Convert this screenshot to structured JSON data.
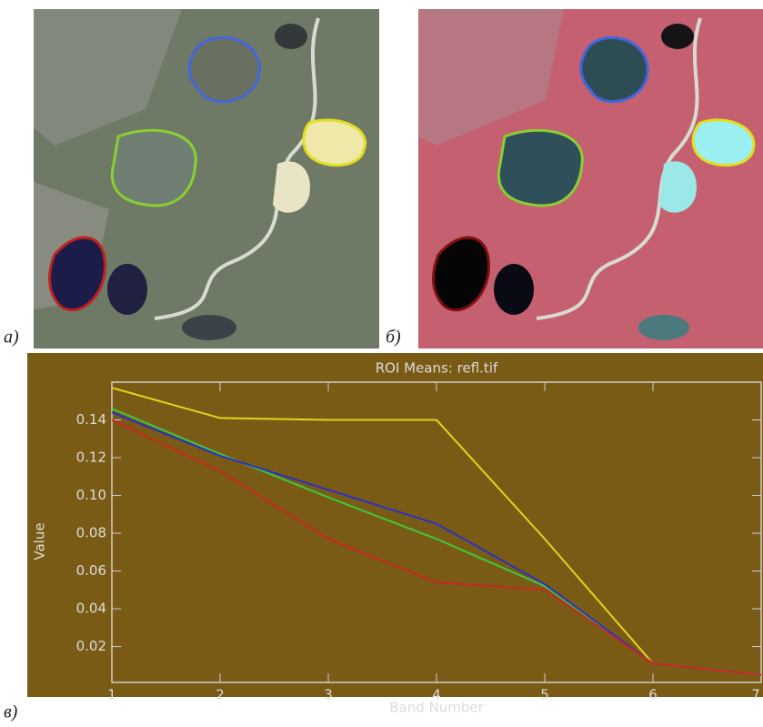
{
  "panels": [
    "а)",
    "б)",
    "в)"
  ],
  "chart_data": {
    "type": "line",
    "title": "ROI Means: refl.tif",
    "x_label": "Band Number",
    "y_label": "Value",
    "x": [
      1,
      2,
      3,
      4,
      5,
      6,
      7
    ],
    "xlim": [
      1,
      7
    ],
    "xticks": [
      1,
      2,
      3,
      4,
      5,
      6,
      7
    ],
    "ylim": [
      0.001,
      0.16
    ],
    "yticks": [
      0.02,
      0.04,
      0.06,
      0.08,
      {
        "value": 0.1,
        "label": "0.10"
      },
      0.12,
      0.14
    ],
    "series": [
      {
        "color": "#e6d21e",
        "values": [
          0.157,
          0.141,
          0.14,
          0.14,
          0.077,
          0.011,
          0.005
        ]
      },
      {
        "color": "#3ec83a",
        "values": [
          0.146,
          0.122,
          0.099,
          0.077,
          0.052,
          0.011,
          0.005
        ]
      },
      {
        "color": "#2b2fc8",
        "values": [
          0.144,
          0.121,
          0.103,
          0.085,
          0.053,
          0.011,
          0.005
        ]
      },
      {
        "color": "#c8281e",
        "values": [
          0.14,
          0.113,
          0.077,
          0.054,
          0.05,
          0.011,
          0.005
        ]
      }
    ]
  }
}
